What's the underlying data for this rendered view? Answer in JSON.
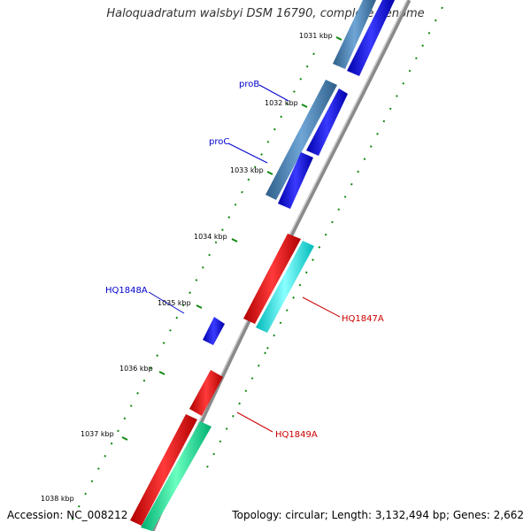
{
  "title": "Haloquadratum walsbyi DSM 16790, complete genome",
  "footer": {
    "accession": "Accession: NC_008212",
    "summary": "Topology: circular; Length: 3,132,494 bp; Genes: 2,662"
  },
  "ticks": [
    "1031 kbp",
    "1032 kbp",
    "1033 kbp",
    "1034 kbp",
    "1035 kbp",
    "1036 kbp",
    "1037 kbp",
    "1038 kbp"
  ],
  "gene_labels": [
    {
      "text": "proB",
      "color": "#0000cc"
    },
    {
      "text": "proC",
      "color": "#0000cc"
    },
    {
      "text": "HQ1848A",
      "color": "#0000cc"
    },
    {
      "text": "HQ1847A",
      "color": "#cc0000"
    },
    {
      "text": "HQ1849A",
      "color": "#cc0000"
    }
  ],
  "colors": {
    "backbone": "#888888",
    "steelblue_feature": "#4682b4",
    "blue_feature": "#0000ee",
    "red_feature": "#ee0000",
    "cyan_feature": "#00eeee",
    "green_feature": "#00ee99",
    "tick_dots": "#118811"
  }
}
